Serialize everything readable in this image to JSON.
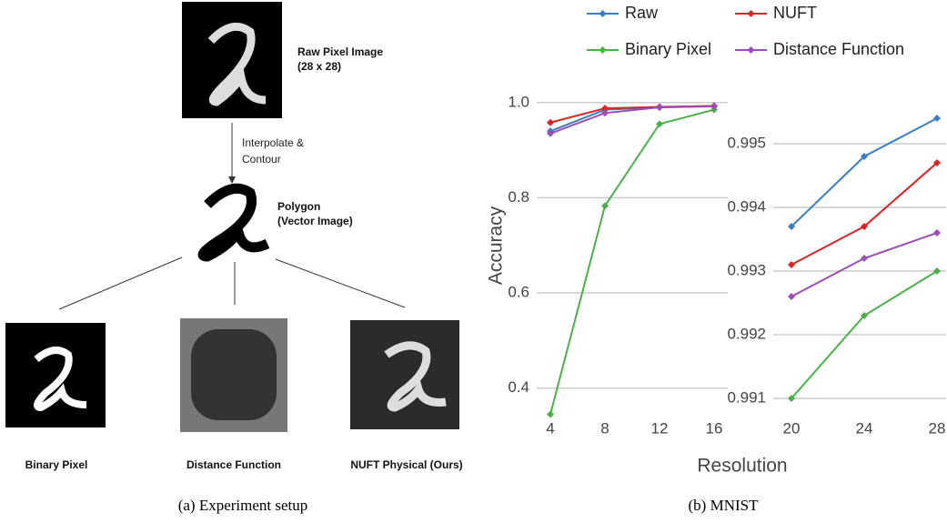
{
  "diagram": {
    "raw_title": "Raw Pixel Image",
    "raw_size": "(28 x 28)",
    "step_1": "Interpolate &",
    "step_2": "Contour",
    "polygon_title": "Polygon",
    "polygon_sub": "(Vector Image)",
    "out_1": "Binary Pixel",
    "out_2": "Distance Function",
    "out_3": "NUFT Physical (Ours)",
    "caption_a": "(a) Experiment setup",
    "caption_b": "(b) MNIST"
  },
  "chart_data": [
    {
      "type": "line",
      "ylabel": "Accuracy",
      "xlabel": "Resolution",
      "x": [
        4,
        8,
        12,
        16
      ],
      "xlim": [
        3,
        17
      ],
      "xticks": [
        4,
        8,
        12,
        16
      ],
      "ylim": [
        0.365,
        1.034
      ],
      "yticks": [
        0.4,
        0.6,
        0.8,
        {
          "value": 1,
          "label": "1.0"
        }
      ],
      "grid": true,
      "series": [
        {
          "name": "Raw",
          "color": "#3a7ebf",
          "values": [
            0.94,
            0.985,
            0.99,
            0.993
          ]
        },
        {
          "name": "NUFT",
          "color": "#d62728",
          "values": [
            0.958,
            0.988,
            0.991,
            0.993
          ]
        },
        {
          "name": "Binary Pixel",
          "color": "#4cb04a",
          "values": [
            0.345,
            0.783,
            0.955,
            0.985
          ]
        },
        {
          "name": "Distance Function",
          "color": "#9b4fb5",
          "values": [
            0.935,
            0.978,
            0.99,
            0.992
          ]
        }
      ]
    },
    {
      "type": "line",
      "x": [
        20,
        24,
        28
      ],
      "xlim": [
        19,
        28.5
      ],
      "xticks": [
        20,
        24,
        28
      ],
      "ylim": [
        0.9909,
        0.9959
      ],
      "yticks": [
        0.991,
        0.992,
        0.993,
        0.994,
        0.995
      ],
      "grid": true,
      "series": [
        {
          "color": "#3a7ebf",
          "values": [
            0.9937,
            0.9948,
            0.9954
          ]
        },
        {
          "color": "#d62728",
          "values": [
            0.9931,
            0.9937,
            0.9947
          ]
        },
        {
          "color": "#4cb04a",
          "values": [
            0.991,
            0.9923,
            0.993
          ]
        },
        {
          "color": "#9b4fb5",
          "values": [
            0.9926,
            0.9932,
            0.9936
          ]
        }
      ]
    }
  ]
}
